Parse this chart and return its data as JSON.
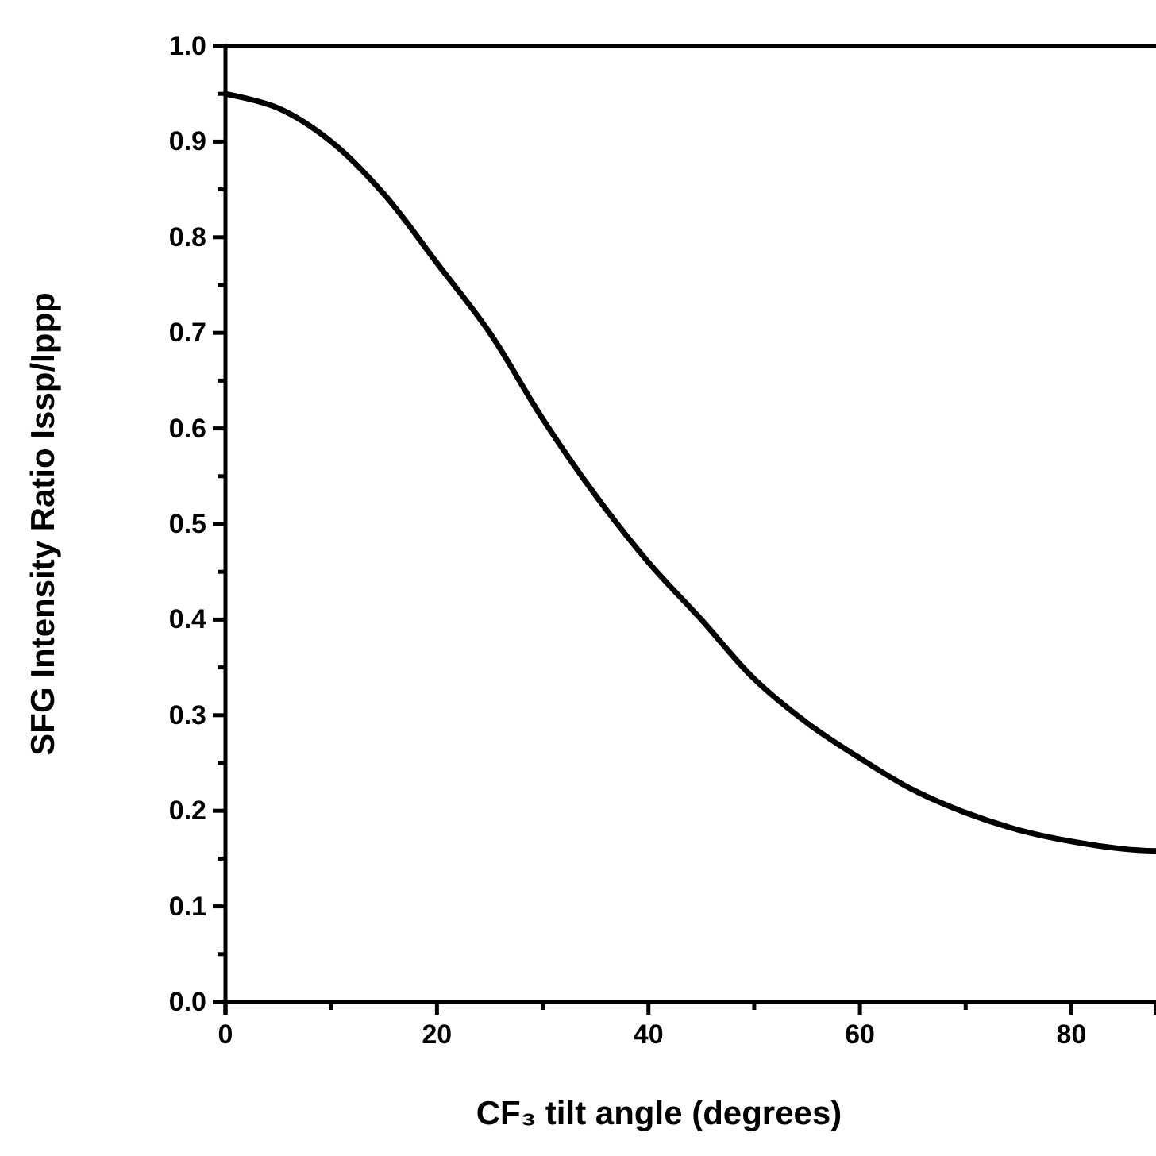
{
  "chart_data": {
    "type": "line",
    "xlabel": "CF₃ tilt angle (degrees)",
    "ylabel": "SFG Intensity Ratio Issp/Ippp",
    "x": [
      0,
      5,
      10,
      15,
      20,
      25,
      30,
      35,
      40,
      45,
      50,
      55,
      60,
      65,
      70,
      75,
      80,
      85,
      88
    ],
    "series": [
      {
        "color": "#000000",
        "values": [
          0.95,
          0.935,
          0.9,
          0.845,
          0.773,
          0.7,
          0.61,
          0.53,
          0.46,
          0.4,
          0.338,
          0.292,
          0.255,
          0.222,
          0.198,
          0.18,
          0.168,
          0.16,
          0.158
        ]
      }
    ],
    "xlim": [
      0,
      88
    ],
    "ylim": [
      0,
      1
    ],
    "xticks": [
      0,
      {
        "value": 10,
        "label": null
      },
      20,
      {
        "value": 30,
        "label": null
      },
      40,
      {
        "value": 50,
        "label": null
      },
      60,
      {
        "value": 70,
        "label": null
      },
      80
    ],
    "yticks": [
      {
        "value": 0,
        "label": "0.0"
      },
      {
        "value": 0.05,
        "label": null
      },
      0.1,
      {
        "value": 0.15,
        "label": null
      },
      0.2,
      {
        "value": 0.25,
        "label": null
      },
      0.3,
      {
        "value": 0.35,
        "label": null
      },
      0.4,
      {
        "value": 0.45,
        "label": null
      },
      0.5,
      {
        "value": 0.55,
        "label": null
      },
      0.6,
      {
        "value": 0.65,
        "label": null
      },
      0.7,
      {
        "value": 0.75,
        "label": null
      },
      0.8,
      {
        "value": 0.85,
        "label": null
      },
      0.9,
      {
        "value": 0.95,
        "label": null
      },
      {
        "value": 1,
        "label": "1.0"
      }
    ],
    "marker": "none",
    "line_style": "solid"
  }
}
